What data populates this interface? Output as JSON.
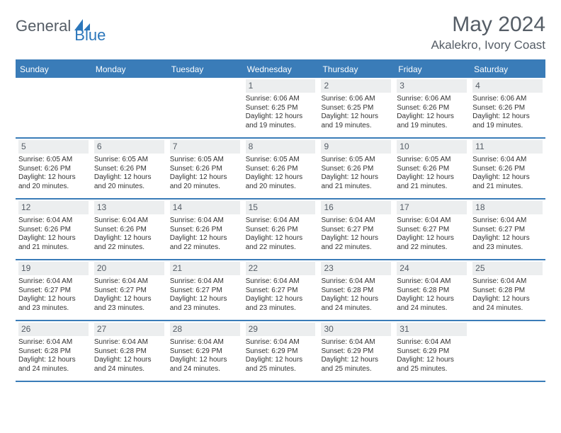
{
  "brand": {
    "part1": "General",
    "part2": "Blue"
  },
  "title": "May 2024",
  "location": "Akalekro, Ivory Coast",
  "colors": {
    "headerBar": "#3a7cb8",
    "dayNumBg": "#eceeef",
    "textMuted": "#555d66",
    "brandBlue": "#2c77bb"
  },
  "daysOfWeek": [
    "Sunday",
    "Monday",
    "Tuesday",
    "Wednesday",
    "Thursday",
    "Friday",
    "Saturday"
  ],
  "weeks": [
    [
      {
        "empty": true
      },
      {
        "empty": true
      },
      {
        "empty": true
      },
      {
        "num": "1",
        "sunrise": "6:06 AM",
        "sunset": "6:25 PM",
        "daylight": "12 hours and 19 minutes."
      },
      {
        "num": "2",
        "sunrise": "6:06 AM",
        "sunset": "6:25 PM",
        "daylight": "12 hours and 19 minutes."
      },
      {
        "num": "3",
        "sunrise": "6:06 AM",
        "sunset": "6:26 PM",
        "daylight": "12 hours and 19 minutes."
      },
      {
        "num": "4",
        "sunrise": "6:06 AM",
        "sunset": "6:26 PM",
        "daylight": "12 hours and 19 minutes."
      }
    ],
    [
      {
        "num": "5",
        "sunrise": "6:05 AM",
        "sunset": "6:26 PM",
        "daylight": "12 hours and 20 minutes."
      },
      {
        "num": "6",
        "sunrise": "6:05 AM",
        "sunset": "6:26 PM",
        "daylight": "12 hours and 20 minutes."
      },
      {
        "num": "7",
        "sunrise": "6:05 AM",
        "sunset": "6:26 PM",
        "daylight": "12 hours and 20 minutes."
      },
      {
        "num": "8",
        "sunrise": "6:05 AM",
        "sunset": "6:26 PM",
        "daylight": "12 hours and 20 minutes."
      },
      {
        "num": "9",
        "sunrise": "6:05 AM",
        "sunset": "6:26 PM",
        "daylight": "12 hours and 21 minutes."
      },
      {
        "num": "10",
        "sunrise": "6:05 AM",
        "sunset": "6:26 PM",
        "daylight": "12 hours and 21 minutes."
      },
      {
        "num": "11",
        "sunrise": "6:04 AM",
        "sunset": "6:26 PM",
        "daylight": "12 hours and 21 minutes."
      }
    ],
    [
      {
        "num": "12",
        "sunrise": "6:04 AM",
        "sunset": "6:26 PM",
        "daylight": "12 hours and 21 minutes."
      },
      {
        "num": "13",
        "sunrise": "6:04 AM",
        "sunset": "6:26 PM",
        "daylight": "12 hours and 22 minutes."
      },
      {
        "num": "14",
        "sunrise": "6:04 AM",
        "sunset": "6:26 PM",
        "daylight": "12 hours and 22 minutes."
      },
      {
        "num": "15",
        "sunrise": "6:04 AM",
        "sunset": "6:26 PM",
        "daylight": "12 hours and 22 minutes."
      },
      {
        "num": "16",
        "sunrise": "6:04 AM",
        "sunset": "6:27 PM",
        "daylight": "12 hours and 22 minutes."
      },
      {
        "num": "17",
        "sunrise": "6:04 AM",
        "sunset": "6:27 PM",
        "daylight": "12 hours and 22 minutes."
      },
      {
        "num": "18",
        "sunrise": "6:04 AM",
        "sunset": "6:27 PM",
        "daylight": "12 hours and 23 minutes."
      }
    ],
    [
      {
        "num": "19",
        "sunrise": "6:04 AM",
        "sunset": "6:27 PM",
        "daylight": "12 hours and 23 minutes."
      },
      {
        "num": "20",
        "sunrise": "6:04 AM",
        "sunset": "6:27 PM",
        "daylight": "12 hours and 23 minutes."
      },
      {
        "num": "21",
        "sunrise": "6:04 AM",
        "sunset": "6:27 PM",
        "daylight": "12 hours and 23 minutes."
      },
      {
        "num": "22",
        "sunrise": "6:04 AM",
        "sunset": "6:27 PM",
        "daylight": "12 hours and 23 minutes."
      },
      {
        "num": "23",
        "sunrise": "6:04 AM",
        "sunset": "6:28 PM",
        "daylight": "12 hours and 24 minutes."
      },
      {
        "num": "24",
        "sunrise": "6:04 AM",
        "sunset": "6:28 PM",
        "daylight": "12 hours and 24 minutes."
      },
      {
        "num": "25",
        "sunrise": "6:04 AM",
        "sunset": "6:28 PM",
        "daylight": "12 hours and 24 minutes."
      }
    ],
    [
      {
        "num": "26",
        "sunrise": "6:04 AM",
        "sunset": "6:28 PM",
        "daylight": "12 hours and 24 minutes."
      },
      {
        "num": "27",
        "sunrise": "6:04 AM",
        "sunset": "6:28 PM",
        "daylight": "12 hours and 24 minutes."
      },
      {
        "num": "28",
        "sunrise": "6:04 AM",
        "sunset": "6:29 PM",
        "daylight": "12 hours and 24 minutes."
      },
      {
        "num": "29",
        "sunrise": "6:04 AM",
        "sunset": "6:29 PM",
        "daylight": "12 hours and 25 minutes."
      },
      {
        "num": "30",
        "sunrise": "6:04 AM",
        "sunset": "6:29 PM",
        "daylight": "12 hours and 25 minutes."
      },
      {
        "num": "31",
        "sunrise": "6:04 AM",
        "sunset": "6:29 PM",
        "daylight": "12 hours and 25 minutes."
      },
      {
        "empty": true
      }
    ]
  ],
  "labels": {
    "sunrise": "Sunrise:",
    "sunset": "Sunset:",
    "daylight": "Daylight:"
  }
}
